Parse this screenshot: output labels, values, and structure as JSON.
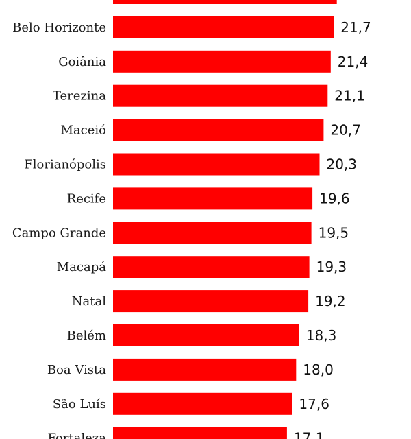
{
  "chart_data": {
    "type": "bar",
    "orientation": "horizontal",
    "categories": [
      "",
      "Belo Horizonte",
      "Goiânia",
      "Terezina",
      "Maceió",
      "Florianópolis",
      "Recife",
      "Campo Grande",
      "Macapá",
      "Natal",
      "Belém",
      "Boa Vista",
      "São Luís",
      "Fortaleza"
    ],
    "values": [
      22.0,
      21.7,
      21.4,
      21.1,
      20.7,
      20.3,
      19.6,
      19.5,
      19.3,
      19.2,
      18.3,
      18.0,
      17.6,
      17.1
    ],
    "value_labels": [
      "",
      "21,7",
      "21,4",
      "21,1",
      "20,7",
      "20,3",
      "19,6",
      "19,5",
      "19,3",
      "19,2",
      "18,3",
      "18,0",
      "17,6",
      "17,1"
    ],
    "bar_color": "#ff0000",
    "grid": false,
    "legend": "none"
  }
}
